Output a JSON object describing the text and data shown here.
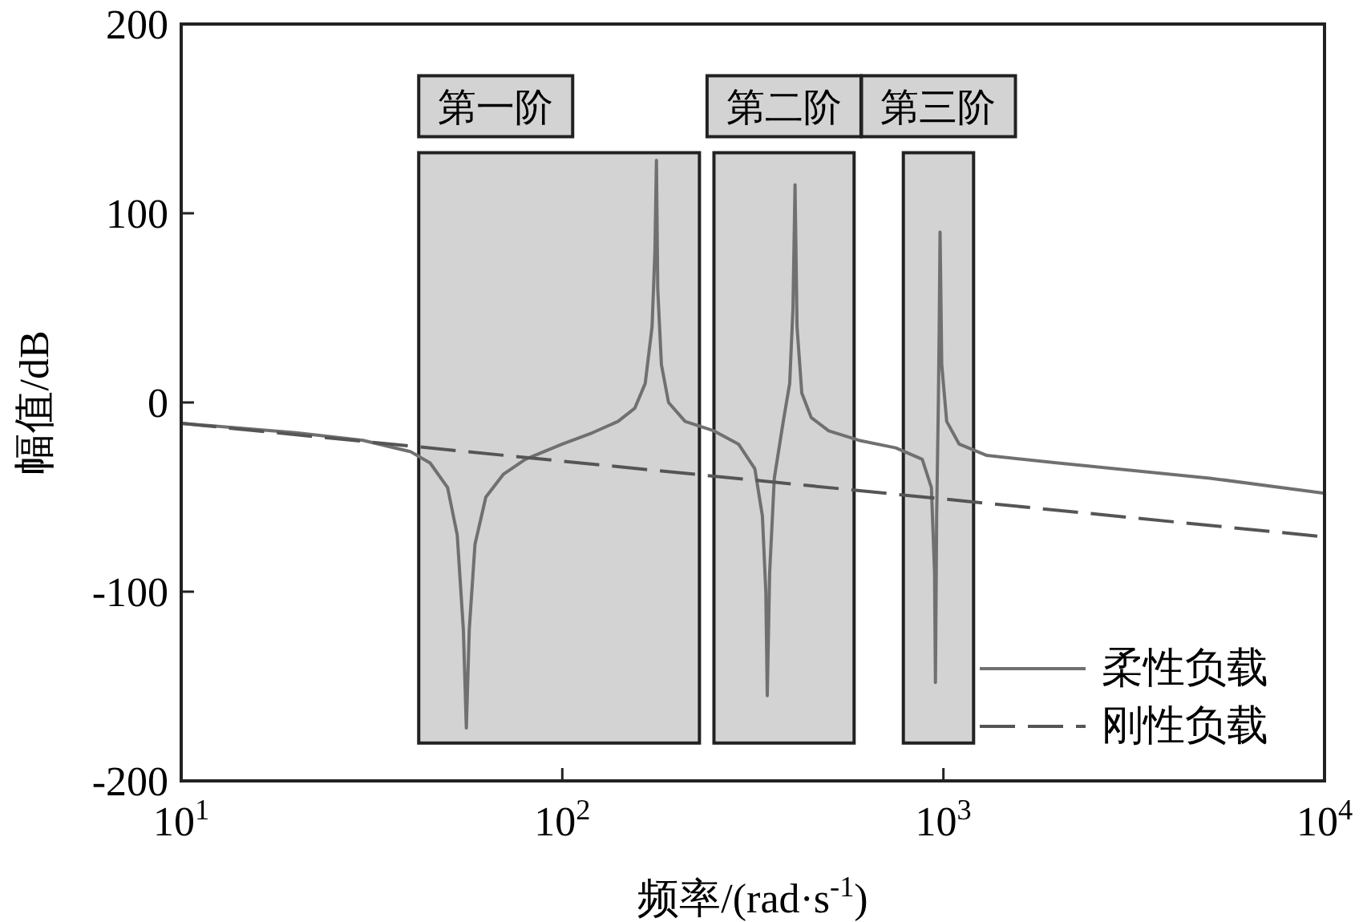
{
  "chart_data": {
    "type": "line",
    "xlabel": "频率/(rad·s$^{-1}$)",
    "ylabel": "幅值/dB",
    "log": "x",
    "xlim": [
      10,
      10000
    ],
    "ylim": [
      -200,
      200
    ],
    "xticks": [
      {
        "value": 10,
        "label": "10$^{1}$"
      },
      {
        "value": 100,
        "label": "10$^{2}$"
      },
      {
        "value": 1000,
        "label": "10$^{3}$"
      },
      {
        "value": 10000,
        "label": "10$^{4}$"
      }
    ],
    "yticks": [
      -200,
      -100,
      0,
      100,
      200
    ],
    "grid": false,
    "legend": "bottom right",
    "bands": [
      {
        "axis": "x",
        "from": 42,
        "to": 229,
        "label": "第一阶",
        "color": "#d3d3d3"
      },
      {
        "axis": "x",
        "from": 250,
        "to": 583,
        "label": "第二阶",
        "color": "#d3d3d3"
      },
      {
        "axis": "x",
        "from": 785,
        "to": 1200,
        "label": "第三阶",
        "color": "#d3d3d3"
      }
    ],
    "series": [
      {
        "name": "柔性负载",
        "color": "#707070",
        "line_style": "solid",
        "x": [
          10,
          20,
          30,
          40,
          45,
          50,
          53,
          55,
          56,
          57,
          59,
          63,
          70,
          80,
          100,
          120,
          140,
          155,
          165,
          172,
          175,
          176.6,
          178,
          182,
          190,
          210,
          250,
          290,
          320,
          335,
          342,
          345,
          350,
          360,
          380,
          395,
          403,
          408,
          413,
          425,
          450,
          500,
          600,
          750,
          880,
          930,
          948,
          953,
          960,
          970,
          975,
          980,
          990,
          1020,
          1100,
          1300,
          2000,
          5000,
          10000
        ],
        "values": [
          -11,
          -16,
          -20,
          -26,
          -32,
          -45,
          -70,
          -120,
          -172,
          -120,
          -75,
          -50,
          -38,
          -30,
          -22,
          -16,
          -10,
          -3,
          10,
          40,
          80,
          128,
          60,
          20,
          0,
          -10,
          -15,
          -22,
          -35,
          -60,
          -100,
          -155,
          -90,
          -40,
          -10,
          10,
          50,
          115,
          40,
          5,
          -8,
          -15,
          -20,
          -24,
          -30,
          -45,
          -90,
          -148,
          -60,
          0,
          40,
          90,
          20,
          -10,
          -22,
          -28,
          -32,
          -40,
          -48
        ]
      },
      {
        "name": "刚性负载",
        "color": "#555555",
        "line_style": "dashed",
        "x": [
          10,
          100,
          1000,
          10000
        ],
        "values": [
          -11,
          -31,
          -51,
          -71
        ]
      }
    ]
  }
}
